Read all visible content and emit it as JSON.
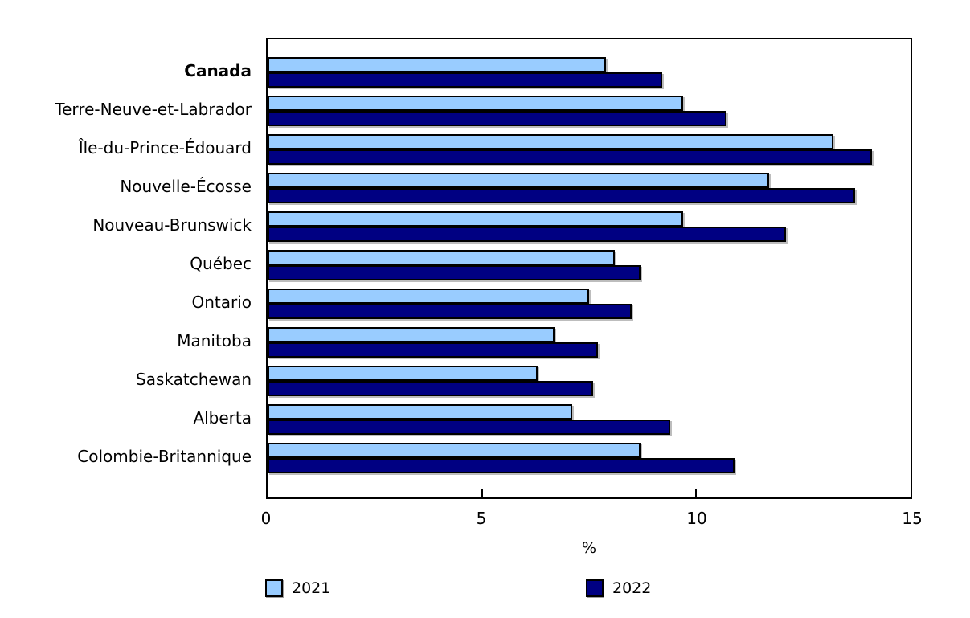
{
  "chart_data": {
    "type": "bar",
    "orientation": "horizontal",
    "categories": [
      "Canada",
      "Terre-Neuve-et-Labrador",
      "Île-du-Prince-Édouard",
      "Nouvelle-Écosse",
      "Nouveau-Brunswick",
      "Québec",
      "Ontario",
      "Manitoba",
      "Saskatchewan",
      "Alberta",
      "Colombie-Britannique"
    ],
    "bold_categories": [
      "Canada"
    ],
    "series": [
      {
        "name": "2021",
        "color": "#99CCFF",
        "values": [
          7.9,
          9.7,
          13.2,
          11.7,
          9.7,
          8.1,
          7.5,
          6.7,
          6.3,
          7.1,
          8.7
        ]
      },
      {
        "name": "2022",
        "color": "#000082",
        "values": [
          9.2,
          10.7,
          14.1,
          13.7,
          12.1,
          8.7,
          8.5,
          7.7,
          7.6,
          9.4,
          10.9
        ]
      }
    ],
    "title": "",
    "xlabel": "%",
    "ylabel": "",
    "xlim": [
      0,
      15
    ],
    "xticks": [
      "0",
      "5",
      "10",
      "15"
    ],
    "grid": false,
    "legend_position": "bottom",
    "bar_border_color": "#000000",
    "background_color": "#ffffff"
  },
  "legend": {
    "items": [
      {
        "label": "2021",
        "color": "#99CCFF"
      },
      {
        "label": "2022",
        "color": "#000082"
      }
    ]
  }
}
